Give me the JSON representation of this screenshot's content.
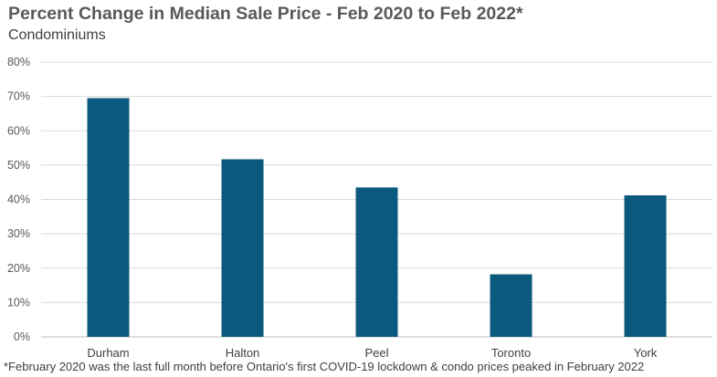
{
  "chart_data": {
    "type": "bar",
    "title": "Percent Change in Median Sale Price - Feb 2020 to Feb 2022*",
    "subtitle": "Condominiums",
    "categories": [
      "Durham",
      "Halton",
      "Peel",
      "Toronto",
      "York"
    ],
    "values": [
      69.5,
      51.7,
      43.5,
      18.2,
      41.2
    ],
    "unit": "%",
    "ylim": [
      0,
      80
    ],
    "yticks": [
      0,
      10,
      20,
      30,
      40,
      50,
      60,
      70,
      80
    ],
    "ytick_labels": [
      "0%",
      "10%",
      "20%",
      "30%",
      "40%",
      "50%",
      "60%",
      "70%",
      "80%"
    ],
    "grid": true,
    "bar_color": "#0b5a7d",
    "footnote": "*February 2020 was the last full month before Ontario's first COVID-19 lockdown & condo prices peaked in February 2022"
  }
}
